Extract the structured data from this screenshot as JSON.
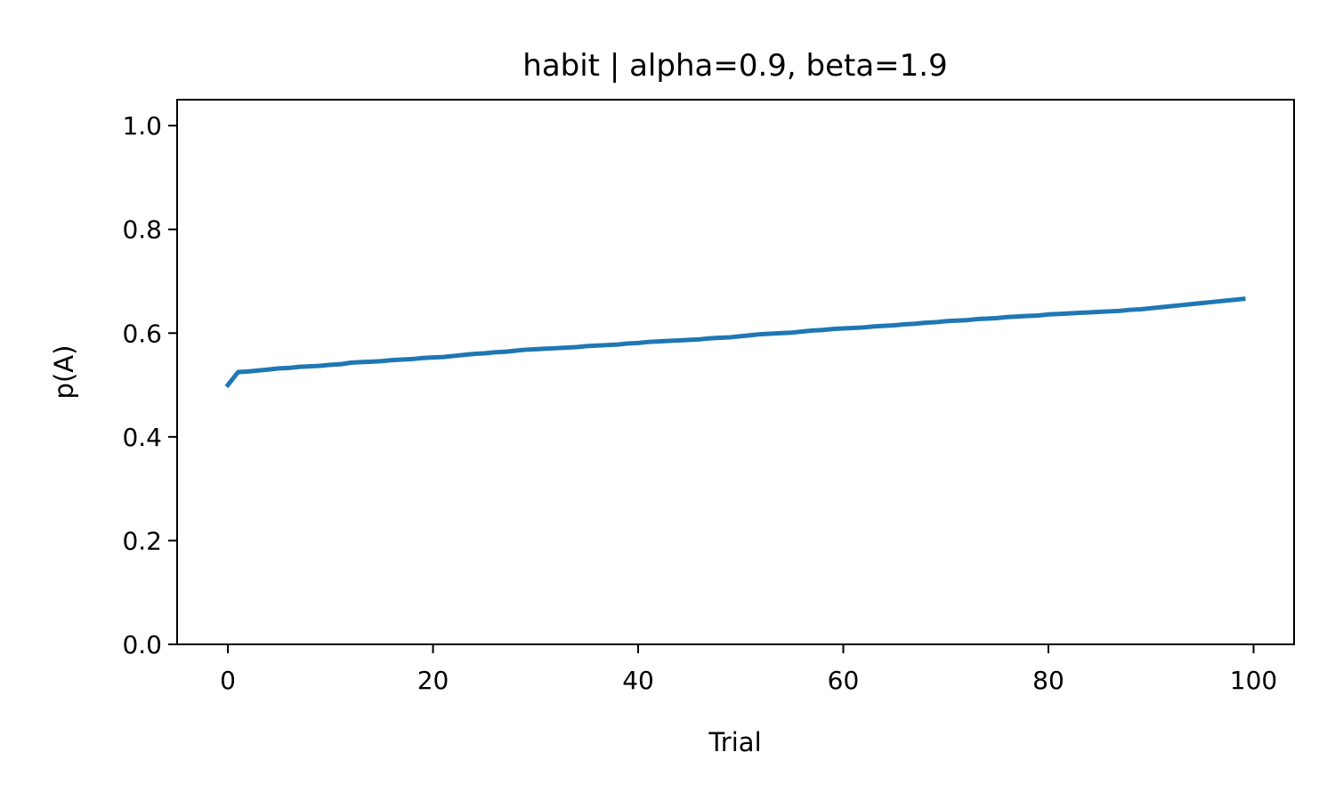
{
  "chart_data": {
    "type": "line",
    "title": "habit | alpha=0.9, beta=1.9",
    "xlabel": "Trial",
    "ylabel": "p(A)",
    "xlim": [
      -4.95,
      103.95
    ],
    "ylim": [
      0.0,
      1.05
    ],
    "x_ticks": [
      0,
      20,
      40,
      60,
      80,
      100
    ],
    "y_ticks": [
      0.0,
      0.2,
      0.4,
      0.6,
      0.8,
      1.0
    ],
    "x_tick_labels": [
      "0",
      "20",
      "40",
      "60",
      "80",
      "100"
    ],
    "y_tick_labels": [
      "0.0",
      "0.2",
      "0.4",
      "0.6",
      "0.8",
      "1.0"
    ],
    "grid": false,
    "series": [
      {
        "color": "#1f77b4",
        "x": [
          0,
          1,
          2,
          3,
          4,
          5,
          6,
          7,
          8,
          9,
          10,
          11,
          12,
          13,
          14,
          15,
          16,
          17,
          18,
          19,
          20,
          21,
          22,
          23,
          24,
          25,
          26,
          27,
          28,
          29,
          30,
          31,
          32,
          33,
          34,
          35,
          36,
          37,
          38,
          39,
          40,
          41,
          42,
          43,
          44,
          45,
          46,
          47,
          48,
          49,
          50,
          51,
          52,
          53,
          54,
          55,
          56,
          57,
          58,
          59,
          60,
          61,
          62,
          63,
          64,
          65,
          66,
          67,
          68,
          69,
          70,
          71,
          72,
          73,
          74,
          75,
          76,
          77,
          78,
          79,
          80,
          81,
          82,
          83,
          84,
          85,
          86,
          87,
          88,
          89,
          90,
          91,
          92,
          93,
          94,
          95,
          96,
          97,
          98,
          99
        ],
        "y": [
          0.5,
          0.525,
          0.526,
          0.528,
          0.53,
          0.532,
          0.533,
          0.535,
          0.536,
          0.537,
          0.539,
          0.54,
          0.543,
          0.544,
          0.545,
          0.546,
          0.548,
          0.549,
          0.55,
          0.552,
          0.553,
          0.554,
          0.556,
          0.558,
          0.56,
          0.561,
          0.563,
          0.564,
          0.566,
          0.568,
          0.569,
          0.57,
          0.571,
          0.572,
          0.573,
          0.575,
          0.576,
          0.577,
          0.578,
          0.58,
          0.581,
          0.583,
          0.584,
          0.585,
          0.586,
          0.587,
          0.588,
          0.59,
          0.591,
          0.592,
          0.594,
          0.596,
          0.598,
          0.599,
          0.6,
          0.601,
          0.603,
          0.605,
          0.606,
          0.608,
          0.609,
          0.61,
          0.611,
          0.613,
          0.614,
          0.615,
          0.617,
          0.618,
          0.62,
          0.621,
          0.623,
          0.624,
          0.625,
          0.627,
          0.628,
          0.629,
          0.631,
          0.632,
          0.633,
          0.634,
          0.636,
          0.637,
          0.638,
          0.639,
          0.64,
          0.641,
          0.642,
          0.643,
          0.645,
          0.646,
          0.648,
          0.65,
          0.652,
          0.654,
          0.656,
          0.658,
          0.66,
          0.662,
          0.664,
          0.666
        ]
      }
    ]
  }
}
